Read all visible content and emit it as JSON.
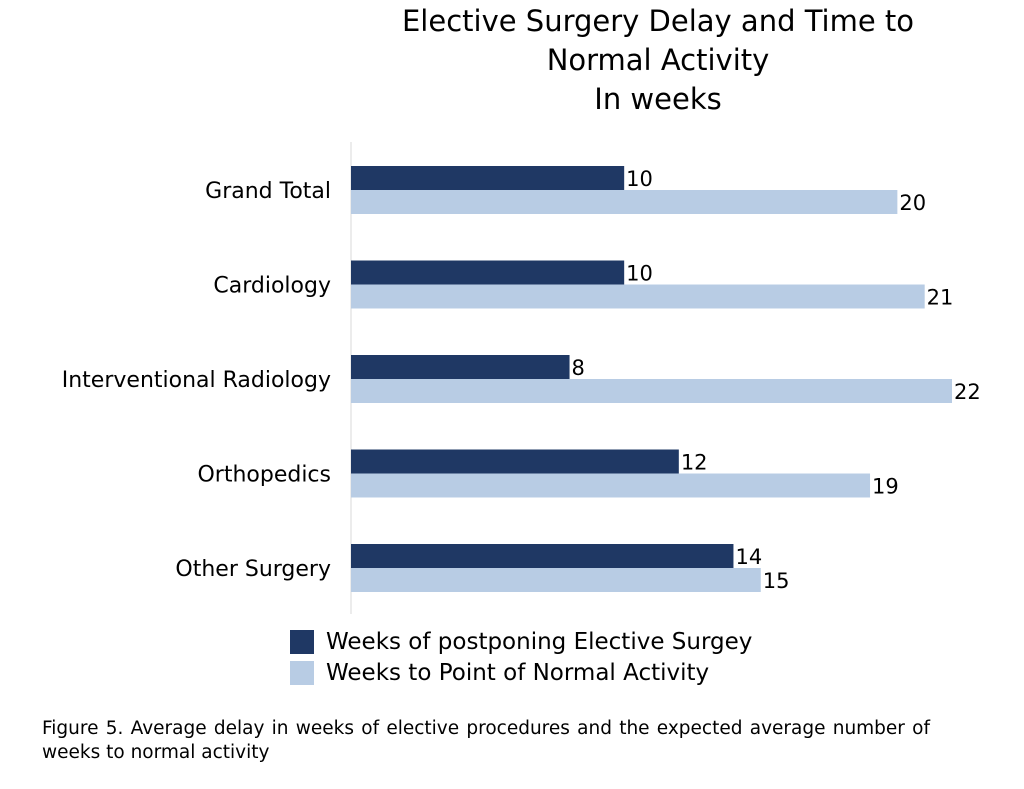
{
  "chart_data": {
    "type": "bar",
    "orientation": "horizontal",
    "title_lines": [
      "Elective Surgery Delay and Time to",
      "Normal Activity",
      "In weeks"
    ],
    "categories": [
      "Grand Total",
      "Cardiology",
      "Interventional Radiology",
      "Orthopedics",
      "Other Surgery"
    ],
    "series": [
      {
        "name": "Weeks of postponing Elective Surgey",
        "color": "#1f3864",
        "values": [
          10,
          10,
          8,
          12,
          14
        ]
      },
      {
        "name": "Weeks to Point of Normal Activity",
        "color": "#b8cce4",
        "values": [
          20,
          21,
          22,
          19,
          15
        ]
      }
    ],
    "xlim": [
      0,
      22
    ],
    "grid": false,
    "data_labels": true,
    "legend_position": "bottom"
  },
  "caption": "Figure 5. Average delay in weeks of elective procedures and the expected average number of weeks to normal activity"
}
